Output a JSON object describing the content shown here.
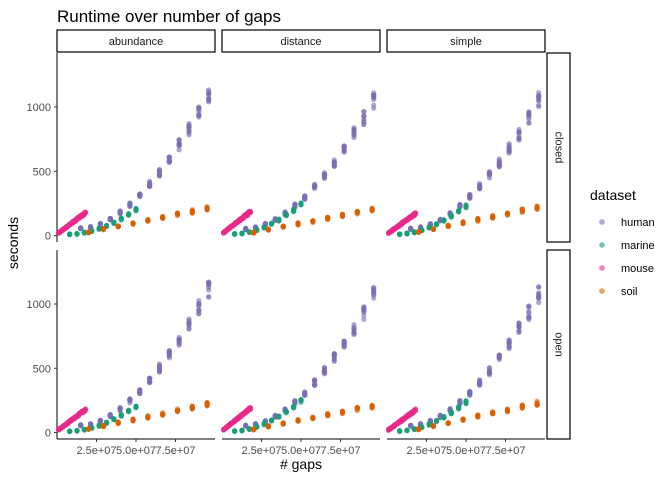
{
  "chart_data": {
    "type": "scatter",
    "title": "Runtime over number of gaps",
    "xlabel": "# gaps",
    "ylabel": "seconds",
    "xlim": [
      0,
      100000000
    ],
    "ylim": [
      -50,
      1420
    ],
    "x_ticks": [
      25000000,
      50000000,
      75000000
    ],
    "x_tick_labels": [
      "2.5e+07",
      "5.0e+07",
      "7.5e+07"
    ],
    "y_ticks": [
      0,
      500,
      1000
    ],
    "y_tick_labels": [
      "0",
      "500",
      "1000"
    ],
    "grid": false,
    "legend": {
      "title": "dataset",
      "position": "right"
    },
    "col_facets": [
      "abundance",
      "distance",
      "simple"
    ],
    "row_facets": [
      "closed",
      "open"
    ],
    "colors": {
      "human": "#7570b3",
      "marine": "#1b9e77",
      "mouse": "#e7298a",
      "soil": "#d95f02"
    },
    "series": [
      {
        "name": "human",
        "x_range": [
          15000000,
          96000000
        ],
        "n_x": 14,
        "reps": 10,
        "jitter": 0.06,
        "y_end": {
          "abundance": 1100,
          "distance": 1050,
          "simple": 1050
        },
        "y_shape": "superlinear"
      },
      {
        "name": "marine",
        "x_range": [
          8000000,
          50000000
        ],
        "n_x": 10,
        "reps": 8,
        "jitter": 0.05,
        "y_end": {
          "abundance": 200,
          "distance": 240,
          "simple": 230
        },
        "y_shape": "superlinear"
      },
      {
        "name": "mouse",
        "x_range": [
          1000000,
          18000000
        ],
        "n_x": 28,
        "reps": 4,
        "jitter": 0.05,
        "y_end": {
          "abundance": 175,
          "distance": 185,
          "simple": 170
        },
        "y_shape": "linear"
      },
      {
        "name": "soil",
        "x_range": [
          20000000,
          95000000
        ],
        "n_x": 9,
        "reps": 8,
        "jitter": 0.07,
        "y_end": {
          "abundance": 215,
          "distance": 200,
          "simple": 220
        },
        "y_shape": "linear"
      }
    ]
  }
}
